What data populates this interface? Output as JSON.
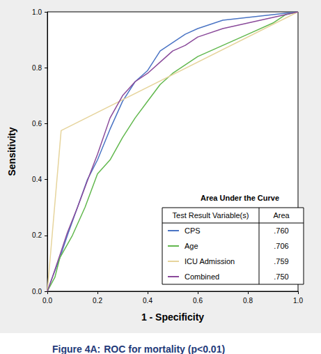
{
  "chart_data": {
    "type": "line",
    "caption": {
      "label": "Figure 4A:",
      "text": "ROC for mortality (p<0.01)"
    },
    "x_label": "1 - Specificity",
    "y_label": "Sensitivity",
    "xlim": [
      0,
      1
    ],
    "ylim": [
      0,
      1
    ],
    "xticks": [
      {
        "value": 0,
        "label": "0.0"
      },
      {
        "value": 0.2,
        "label": "0.2"
      },
      {
        "value": 0.4,
        "label": "0.4"
      },
      {
        "value": 0.6,
        "label": "0.6"
      },
      {
        "value": 0.8,
        "label": "0.8"
      },
      {
        "value": 1,
        "label": "1.0"
      }
    ],
    "yticks": [
      {
        "value": 0,
        "label": "0.0"
      },
      {
        "value": 0.2,
        "label": "0.2"
      },
      {
        "value": 0.4,
        "label": "0.4"
      },
      {
        "value": 0.6,
        "label": "0.6"
      },
      {
        "value": 0.8,
        "label": "0.8"
      },
      {
        "value": 1,
        "label": "1.0"
      }
    ],
    "grid": false,
    "table": {
      "title": "Area Under the Curve",
      "header": [
        "Test Result Variable(s)",
        "Area"
      ]
    },
    "series": [
      {
        "name": "CPS",
        "color": "#4a74c4",
        "area": {
          "value": 0.76,
          "label": ".760"
        },
        "x": [
          0,
          0.02,
          0.05,
          0.08,
          0.12,
          0.16,
          0.2,
          0.25,
          0.3,
          0.35,
          0.4,
          0.45,
          0.5,
          0.55,
          0.6,
          0.7,
          0.8,
          0.9,
          1
        ],
        "values": [
          0,
          0.05,
          0.12,
          0.2,
          0.3,
          0.4,
          0.47,
          0.58,
          0.68,
          0.75,
          0.79,
          0.86,
          0.89,
          0.92,
          0.94,
          0.97,
          0.98,
          0.99,
          1
        ]
      },
      {
        "name": "Age",
        "color": "#62b84e",
        "area": {
          "value": 0.706,
          "label": ".706"
        },
        "x": [
          0,
          0.03,
          0.05,
          0.1,
          0.15,
          0.2,
          0.25,
          0.3,
          0.35,
          0.4,
          0.45,
          0.5,
          0.6,
          0.7,
          0.8,
          0.9,
          0.95,
          1
        ],
        "values": [
          0,
          0.05,
          0.12,
          0.2,
          0.3,
          0.42,
          0.47,
          0.55,
          0.62,
          0.68,
          0.74,
          0.78,
          0.84,
          0.88,
          0.92,
          0.96,
          0.99,
          1
        ]
      },
      {
        "name": "ICU Admission",
        "color": "#e6d49c",
        "area": {
          "value": 0.759,
          "label": ".759"
        },
        "x": [
          0,
          0.055,
          1
        ],
        "values": [
          0,
          0.575,
          1
        ]
      },
      {
        "name": "Combined",
        "color": "#8a4a9a",
        "area": {
          "value": 0.75,
          "label": ".750"
        },
        "x": [
          0,
          0.02,
          0.05,
          0.08,
          0.12,
          0.17,
          0.2,
          0.25,
          0.3,
          0.35,
          0.4,
          0.45,
          0.5,
          0.55,
          0.6,
          0.7,
          0.8,
          0.9,
          1
        ],
        "values": [
          0,
          0.05,
          0.13,
          0.21,
          0.3,
          0.42,
          0.49,
          0.62,
          0.7,
          0.75,
          0.78,
          0.82,
          0.86,
          0.88,
          0.91,
          0.94,
          0.96,
          0.98,
          1
        ]
      }
    ]
  }
}
